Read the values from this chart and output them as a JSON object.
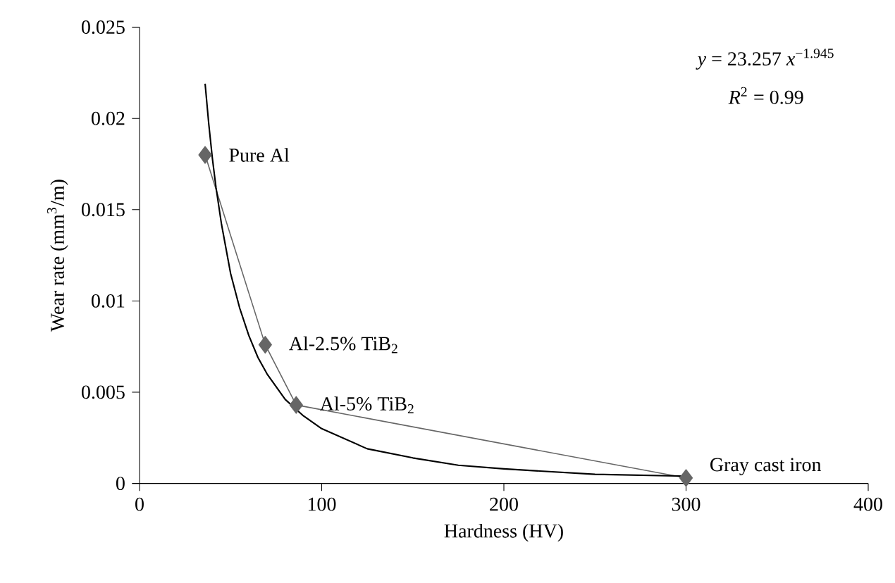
{
  "chart_data": {
    "type": "line",
    "xlabel": "Hardness (HV)",
    "ylabel": "Wear rate (mm$^{3}$/m)",
    "xlim": [
      0,
      400
    ],
    "xticks": [
      0,
      100,
      200,
      300,
      400
    ],
    "ylim": [
      0,
      0.025
    ],
    "yticks": [
      0,
      0.005,
      0.01,
      0.015,
      0.02,
      0.025
    ],
    "grid": false,
    "series": [
      {
        "color": "#666666",
        "marker": "diamond",
        "x": [
          36,
          69,
          86,
          300
        ],
        "values": [
          0.018,
          0.0076,
          0.0043,
          0.0003
        ]
      },
      {
        "color": "#000000",
        "marker": "none",
        "x": [
          36,
          38,
          40,
          42,
          45,
          50,
          55,
          60,
          65,
          70,
          80,
          90,
          100,
          125,
          150,
          175,
          200,
          250,
          300
        ],
        "values": [
          0.0219,
          0.0197,
          0.0178,
          0.0162,
          0.0142,
          0.0115,
          0.0096,
          0.0081,
          0.0069,
          0.006,
          0.0046,
          0.0037,
          0.003,
          0.0019,
          0.0014,
          0.001,
          0.0008,
          0.0005,
          0.0004
        ]
      }
    ],
    "annotations": [
      {
        "text": "Pure Al",
        "x": 36,
        "y": 0.018
      },
      {
        "text": "Al-2.5% TiB$_{2}$",
        "x": 69,
        "y": 0.0076
      },
      {
        "text": "Al-5% TiB$_{2}$",
        "x": 86,
        "y": 0.0043
      },
      {
        "text": "Gray cast iron",
        "x": 300,
        "y": 0.0003
      },
      "*y* = 23.257 *x*$^{−1.945}$",
      "*R*$^{2}$ = 0.99"
    ]
  }
}
